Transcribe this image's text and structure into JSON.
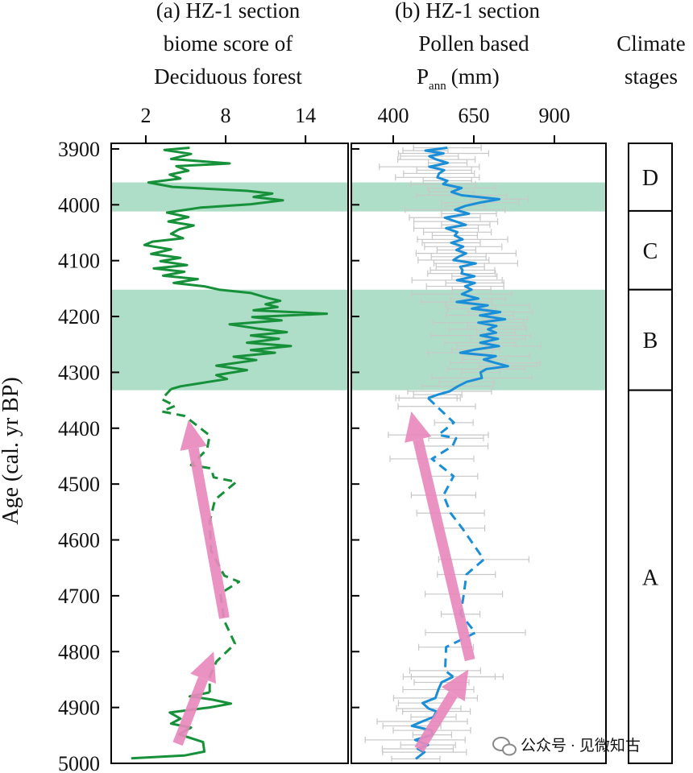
{
  "chart_data": [
    {
      "type": "line",
      "title_lines": [
        "(a) HZ-1 section",
        "biome score of",
        "Deciduous forest"
      ],
      "xlabel": "biome score of Deciduous forest",
      "ylabel": "Age (cal. yr BP)",
      "xticks": [
        2,
        8,
        14
      ],
      "xlim": [
        -0.6,
        17.2
      ],
      "yticks": [
        3900,
        4000,
        4100,
        4200,
        4300,
        4400,
        4500,
        4600,
        4700,
        4800,
        4900,
        5000
      ],
      "ylim": [
        3890,
        5000
      ],
      "y_inverted": true,
      "color": "#16913a",
      "series": [
        {
          "name": "biome score (solid)",
          "style": "solid",
          "points": [
            [
              5.3,
              3898
            ],
            [
              3.4,
              3902
            ],
            [
              5.4,
              3909
            ],
            [
              3.9,
              3918
            ],
            [
              8.3,
              3926
            ],
            [
              4.3,
              3931
            ],
            [
              5.2,
              3939
            ],
            [
              3.8,
              3946
            ],
            [
              4.6,
              3953
            ],
            [
              2.2,
              3960
            ],
            [
              4.0,
              3968
            ],
            [
              9.6,
              3975
            ],
            [
              11.5,
              3980
            ],
            [
              10.1,
              3986
            ],
            [
              12.3,
              3992
            ],
            [
              9.9,
              3999
            ],
            [
              6.1,
              4005
            ],
            [
              3.6,
              4014
            ],
            [
              5.2,
              4022
            ],
            [
              3.7,
              4030
            ],
            [
              5.6,
              4037
            ],
            [
              4.5,
              4044
            ],
            [
              3.9,
              4052
            ],
            [
              4.8,
              4060
            ],
            [
              2.5,
              4066
            ],
            [
              1.9,
              4072
            ],
            [
              3.9,
              4080
            ],
            [
              2.4,
              4088
            ],
            [
              4.6,
              4095
            ],
            [
              3.1,
              4101
            ],
            [
              5.1,
              4108
            ],
            [
              2.6,
              4114
            ],
            [
              4.9,
              4120
            ],
            [
              3.3,
              4127
            ],
            [
              5.9,
              4133
            ],
            [
              4.1,
              4140
            ],
            [
              6.4,
              4146
            ],
            [
              7.5,
              4152
            ],
            [
              9.9,
              4158
            ],
            [
              11.2,
              4167
            ],
            [
              12.1,
              4172
            ],
            [
              11.0,
              4178
            ],
            [
              11.9,
              4183
            ],
            [
              10.1,
              4189
            ],
            [
              15.6,
              4195
            ],
            [
              10.0,
              4201
            ],
            [
              12.2,
              4207
            ],
            [
              8.3,
              4214
            ],
            [
              10.5,
              4222
            ],
            [
              12.6,
              4228
            ],
            [
              9.9,
              4234
            ],
            [
              12.0,
              4240
            ],
            [
              9.6,
              4247
            ],
            [
              12.9,
              4253
            ],
            [
              9.9,
              4260
            ],
            [
              11.7,
              4265
            ],
            [
              8.6,
              4272
            ],
            [
              10.3,
              4278
            ],
            [
              7.3,
              4288
            ],
            [
              9.6,
              4296
            ],
            [
              7.3,
              4305
            ],
            [
              8.1,
              4312
            ],
            [
              6.2,
              4319
            ],
            [
              4.6,
              4325
            ],
            [
              3.9,
              4330
            ]
          ]
        },
        {
          "name": "biome score (dashed)",
          "style": "dashed",
          "points": [
            [
              3.9,
              4330
            ],
            [
              3.2,
              4348
            ],
            [
              4.2,
              4360
            ],
            [
              3.2,
              4370
            ],
            [
              4.9,
              4378
            ],
            [
              5.3,
              4385
            ],
            [
              6.8,
              4413
            ],
            [
              6.6,
              4438
            ],
            [
              5.4,
              4466
            ],
            [
              6.9,
              4472
            ],
            [
              7.1,
              4488
            ],
            [
              8.8,
              4496
            ],
            [
              7.2,
              4528
            ],
            [
              6.8,
              4568
            ],
            [
              6.9,
              4619
            ],
            [
              7.9,
              4664
            ],
            [
              9.0,
              4675
            ],
            [
              7.6,
              4696
            ],
            [
              7.9,
              4745
            ],
            [
              8.7,
              4786
            ],
            [
              7.3,
              4818
            ],
            [
              6.8,
              4845
            ],
            [
              6.8,
              4873
            ]
          ]
        },
        {
          "name": "biome score (solid, lower)",
          "style": "solid",
          "points": [
            [
              6.8,
              4873
            ],
            [
              5.3,
              4880
            ],
            [
              7.0,
              4886
            ],
            [
              8.4,
              4893
            ],
            [
              6.8,
              4900
            ],
            [
              3.8,
              4909
            ],
            [
              4.6,
              4920
            ],
            [
              3.9,
              4929
            ],
            [
              5.4,
              4936
            ],
            [
              4.5,
              4948
            ],
            [
              6.3,
              4962
            ],
            [
              6.4,
              4979
            ],
            [
              4.9,
              4986
            ],
            [
              0.9,
              4991
            ]
          ]
        }
      ],
      "shaded_intervals": [
        [
          3960,
          4012
        ],
        [
          4152,
          4332
        ]
      ],
      "trend_arrows": [
        {
          "from": [
            7.9,
            4740
          ],
          "to": [
            5.2,
            4385
          ]
        },
        {
          "from": [
            4.4,
            4965
          ],
          "to": [
            7.1,
            4800
          ]
        }
      ]
    },
    {
      "type": "line",
      "title_lines": [
        "(b) HZ-1 section",
        "Pollen based",
        "P",
        "ann",
        "(mm)"
      ],
      "xlabel": "Pollen based Pann (mm)",
      "xticks": [
        400,
        650,
        900
      ],
      "xlim": [
        270,
        1060
      ],
      "ylim": [
        3890,
        5000
      ],
      "y_inverted": true,
      "color": "#1b8ed8",
      "errorbar_color": "#c8c8c8",
      "series": [
        {
          "name": "Pann (solid)",
          "style": "solid",
          "points": [
            [
              568,
              3898
            ],
            [
              500,
              3903
            ],
            [
              556,
              3908
            ],
            [
              512,
              3913
            ],
            [
              534,
              3919
            ],
            [
              569,
              3925
            ],
            [
              512,
              3932
            ],
            [
              558,
              3938
            ],
            [
              542,
              3944
            ],
            [
              537,
              3951
            ],
            [
              568,
              3957
            ],
            [
              555,
              3963
            ],
            [
              612,
              3970
            ],
            [
              581,
              3977
            ],
            [
              612,
              3983
            ],
            [
              729,
              3990
            ],
            [
              670,
              3996
            ],
            [
              624,
              4002
            ],
            [
              592,
              4009
            ],
            [
              635,
              4016
            ],
            [
              560,
              4023
            ],
            [
              594,
              4030
            ],
            [
              625,
              4036
            ],
            [
              564,
              4042
            ],
            [
              599,
              4049
            ],
            [
              591,
              4055
            ],
            [
              615,
              4062
            ],
            [
              580,
              4068
            ],
            [
              617,
              4075
            ],
            [
              596,
              4081
            ],
            [
              626,
              4087
            ],
            [
              603,
              4093
            ],
            [
              587,
              4099
            ],
            [
              656,
              4105
            ],
            [
              608,
              4111
            ],
            [
              615,
              4117
            ],
            [
              612,
              4123
            ],
            [
              652,
              4128
            ],
            [
              598,
              4135
            ],
            [
              653,
              4140
            ],
            [
              623,
              4146
            ],
            [
              643,
              4152
            ],
            [
              613,
              4160
            ],
            [
              664,
              4168
            ],
            [
              597,
              4174
            ],
            [
              693,
              4180
            ],
            [
              644,
              4186
            ],
            [
              732,
              4192
            ],
            [
              669,
              4198
            ],
            [
              747,
              4205
            ],
            [
              664,
              4211
            ],
            [
              720,
              4217
            ],
            [
              694,
              4223
            ],
            [
              719,
              4229
            ],
            [
              671,
              4234
            ],
            [
              725,
              4240
            ],
            [
              670,
              4247
            ],
            [
              728,
              4253
            ],
            [
              656,
              4259
            ],
            [
              608,
              4265
            ],
            [
              718,
              4271
            ],
            [
              681,
              4277
            ],
            [
              716,
              4283
            ],
            [
              756,
              4289
            ],
            [
              689,
              4294
            ],
            [
              671,
              4300
            ],
            [
              675,
              4310
            ],
            [
              628,
              4317
            ],
            [
              600,
              4325
            ],
            [
              575,
              4334
            ],
            [
              538,
              4340
            ],
            [
              508,
              4346
            ]
          ]
        },
        {
          "name": "Pann (dashed)",
          "style": "dashed",
          "points": [
            [
              508,
              4346
            ],
            [
              535,
              4361
            ],
            [
              588,
              4390
            ],
            [
              540,
              4412
            ],
            [
              595,
              4418
            ],
            [
              584,
              4432
            ],
            [
              520,
              4455
            ],
            [
              587,
              4486
            ],
            [
              556,
              4520
            ],
            [
              578,
              4552
            ],
            [
              614,
              4579
            ],
            [
              681,
              4635
            ],
            [
              627,
              4662
            ],
            [
              619,
              4697
            ],
            [
              609,
              4733
            ],
            [
              655,
              4766
            ],
            [
              564,
              4792
            ],
            [
              561,
              4834
            ],
            [
              586,
              4845
            ]
          ]
        },
        {
          "name": "Pann (solid, lower)",
          "style": "solid",
          "points": [
            [
              586,
              4845
            ],
            [
              550,
              4855
            ],
            [
              540,
              4868
            ],
            [
              531,
              4883
            ],
            [
              491,
              4892
            ],
            [
              510,
              4902
            ],
            [
              534,
              4907
            ],
            [
              525,
              4917
            ],
            [
              490,
              4925
            ],
            [
              458,
              4933
            ],
            [
              520,
              4941
            ],
            [
              521,
              4949
            ],
            [
              468,
              4958
            ],
            [
              508,
              4967
            ],
            [
              476,
              4974
            ],
            [
              497,
              4980
            ],
            [
              470,
              4992
            ]
          ]
        }
      ],
      "shaded_intervals": [
        [
          3960,
          4012
        ],
        [
          4152,
          4332
        ]
      ],
      "trend_arrows": [
        {
          "from": [
            638,
            4815
          ],
          "to": [
            456,
            4370
          ]
        },
        {
          "from": [
            480,
            4975
          ],
          "to": [
            633,
            4832
          ]
        }
      ]
    }
  ],
  "stages": {
    "title_lines": [
      "Climate",
      "stages"
    ],
    "intervals": [
      {
        "label": "D",
        "from": 3890,
        "to": 4011
      },
      {
        "label": "C",
        "from": 4011,
        "to": 4152
      },
      {
        "label": "B",
        "from": 4152,
        "to": 4332
      },
      {
        "label": "A",
        "from": 4332,
        "to": 5000
      }
    ]
  },
  "watermark": "公众号 · 见微知古",
  "shade_color": "#8dd0b0",
  "arrow_color": "#e989bd"
}
